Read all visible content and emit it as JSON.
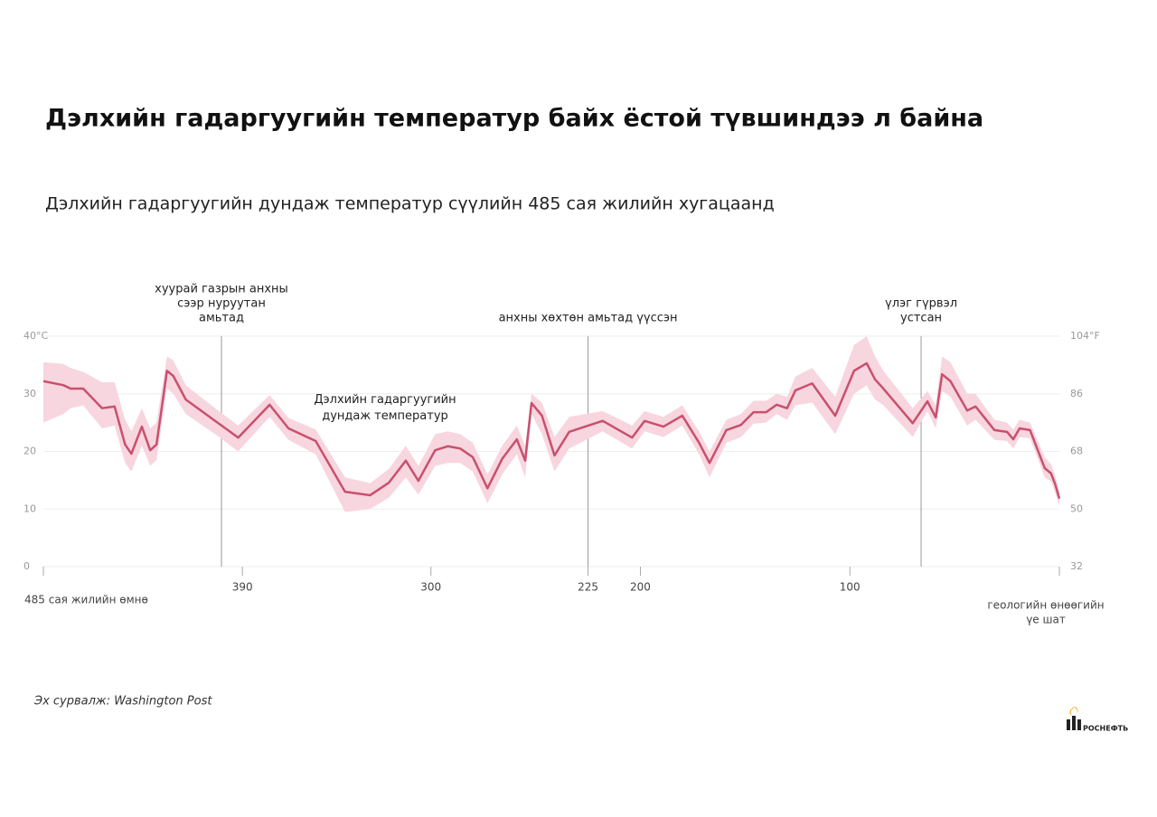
{
  "chart_data": {
    "type": "line",
    "title": "Дэлхийн гадаргуугийн температур байх ёстой түвшиндээ л байна",
    "subtitle": "Дэлхийн гадаргуугийн дундаж температур сүүлийн 485 сая жилийн хугацаанд",
    "xlim": [
      485,
      0
    ],
    "xticks": [
      390,
      300,
      225,
      200,
      100
    ],
    "x_start_label": "485 сая жилийн өмнө",
    "x_end_label": [
      "геологийн өнөөгийн",
      "үе шат"
    ],
    "ylim": [
      0,
      40
    ],
    "yticks": [
      0,
      10,
      20,
      30,
      {
        "value": 40,
        "label": "40°C"
      }
    ],
    "y2lim": [
      32,
      104
    ],
    "y2ticks": [
      32,
      50,
      68,
      86,
      {
        "value": 104,
        "label": "104°F"
      }
    ],
    "grid": true,
    "series": [
      {
        "name": "Дэлхийн гадаргуугийн дундаж температур",
        "color": "#c9506e",
        "band_color": "#f7d6df",
        "x": [
          485,
          475.5,
          472,
          466,
          457,
          451,
          446,
          443,
          438,
          434,
          431,
          426,
          423,
          417,
          403,
          392,
          377,
          368,
          355,
          341,
          329,
          320,
          312,
          306,
          298,
          292,
          286,
          280,
          273,
          266,
          259,
          255,
          252,
          247,
          241,
          234,
          218,
          204,
          198,
          189,
          180,
          172,
          167,
          159,
          152,
          146,
          140,
          135,
          130,
          126,
          118,
          107,
          98,
          92,
          88,
          84,
          70,
          63,
          59,
          56,
          52,
          44,
          40,
          31,
          25,
          22,
          19,
          14,
          7,
          4,
          2,
          0
        ],
        "values": [
          32.2,
          31.5,
          30.9,
          30.9,
          27.5,
          27.8,
          21.2,
          19.6,
          24.3,
          20.2,
          21.2,
          34.0,
          33.1,
          29.0,
          25.3,
          22.4,
          28.1,
          24.0,
          21.8,
          13.0,
          12.4,
          14.6,
          18.4,
          14.9,
          20.2,
          20.9,
          20.5,
          19.0,
          13.6,
          18.7,
          22.1,
          18.4,
          28.4,
          26.2,
          19.3,
          23.4,
          25.3,
          22.4,
          25.3,
          24.3,
          26.2,
          21.5,
          18.0,
          23.7,
          24.6,
          26.8,
          26.8,
          28.1,
          27.5,
          30.6,
          31.8,
          26.2,
          34.0,
          35.3,
          32.5,
          30.9,
          24.9,
          28.7,
          25.9,
          33.4,
          32.2,
          27.1,
          27.8,
          23.7,
          23.4,
          22.1,
          24.0,
          23.7,
          17.1,
          16.2,
          14.3,
          11.8
        ],
        "upper": [
          35.5,
          35.2,
          34.5,
          33.8,
          32.0,
          32.0,
          25.5,
          23.5,
          27.5,
          24.0,
          25.0,
          36.5,
          35.8,
          31.5,
          27.5,
          24.5,
          29.8,
          25.8,
          23.8,
          15.5,
          14.5,
          17.0,
          21.0,
          17.5,
          23.0,
          23.5,
          23.0,
          21.5,
          16.0,
          21.0,
          24.5,
          21.0,
          30.0,
          28.5,
          22.5,
          26.0,
          27.0,
          24.5,
          27.0,
          26.0,
          28.0,
          23.5,
          20.0,
          25.5,
          26.5,
          28.8,
          28.8,
          30.0,
          29.5,
          33.0,
          34.5,
          29.5,
          38.5,
          40.0,
          36.5,
          34.0,
          27.5,
          30.5,
          28.0,
          36.5,
          35.5,
          30.0,
          30.0,
          25.5,
          25.0,
          23.8,
          25.5,
          25.0,
          19.0,
          17.8,
          15.8,
          13.0
        ],
        "lower": [
          25.0,
          26.5,
          27.5,
          28.0,
          24.0,
          24.5,
          18.0,
          16.5,
          21.0,
          17.5,
          18.5,
          31.0,
          30.0,
          26.5,
          23.0,
          20.0,
          26.0,
          22.0,
          19.5,
          9.5,
          10.0,
          12.0,
          15.5,
          12.5,
          17.5,
          18.0,
          18.0,
          16.5,
          11.0,
          16.0,
          19.5,
          15.5,
          26.5,
          23.0,
          16.5,
          20.5,
          23.5,
          20.5,
          23.5,
          22.5,
          24.5,
          19.5,
          15.5,
          21.5,
          22.5,
          24.8,
          25.0,
          26.5,
          25.5,
          28.0,
          28.5,
          23.0,
          30.0,
          31.5,
          29.0,
          28.0,
          22.5,
          27.0,
          24.0,
          30.5,
          29.5,
          24.5,
          25.5,
          22.0,
          21.8,
          20.5,
          22.5,
          22.3,
          15.5,
          14.8,
          12.8,
          10.5
        ]
      }
    ],
    "annotations": [
      {
        "x": 400,
        "lines": [
          "хуурай газрын анхны",
          "сээр нуруутан",
          "амьтад"
        ]
      },
      {
        "x": 225,
        "lines": [
          "анхны хөхтөн амьтад үүссэн"
        ]
      },
      {
        "x": 66,
        "lines": [
          "үлэг гүрвэл",
          "устсан"
        ]
      }
    ],
    "source": "Эх сурвалж: Washington Post",
    "logo": "РОСНЕФТЬ"
  }
}
